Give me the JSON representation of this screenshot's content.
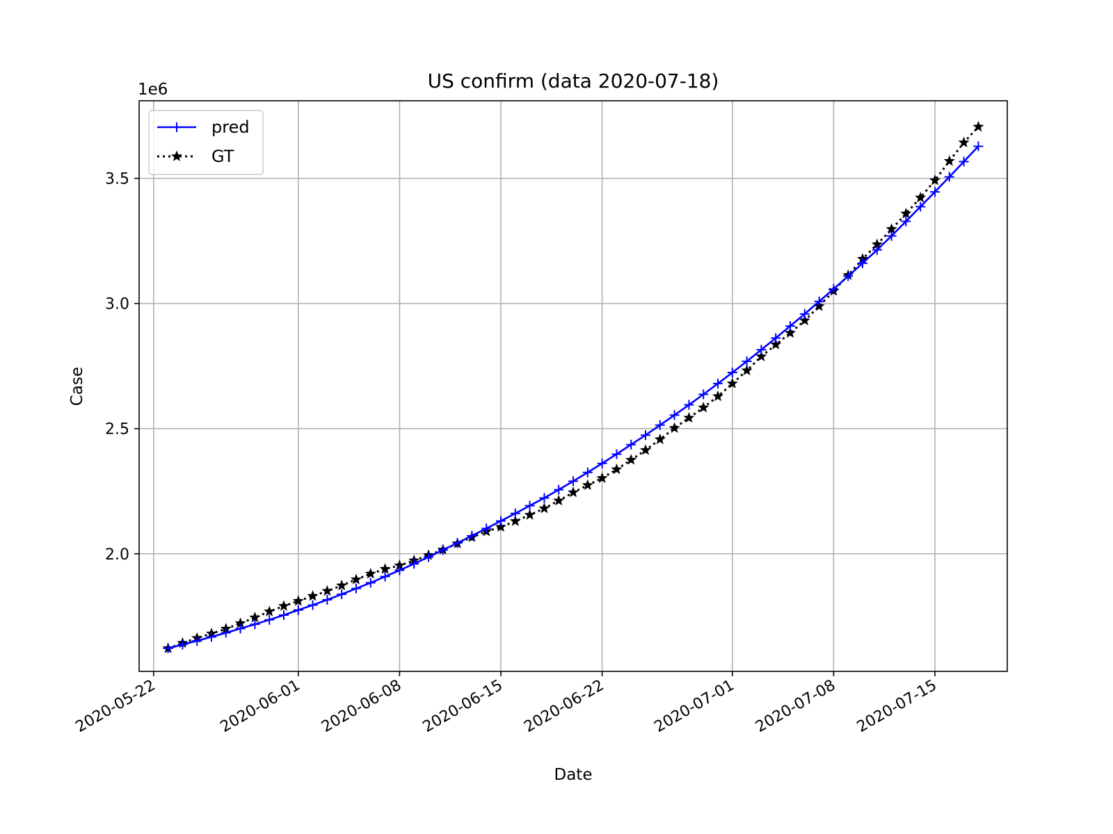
{
  "chart_data": {
    "type": "line",
    "title": "US confirm (data 2020-07-18)",
    "xlabel": "Date",
    "ylabel": "Case",
    "y_offset_label": "1e6",
    "y_scale_factor": 1000000,
    "grid": true,
    "legend_position": "upper-left",
    "xlim": [
      "2020-05-21",
      "2020-07-20"
    ],
    "ylim": [
      1530000,
      3810000
    ],
    "x_ticks": [
      "2020-05-22",
      "2020-06-01",
      "2020-06-08",
      "2020-06-15",
      "2020-06-22",
      "2020-07-01",
      "2020-07-08",
      "2020-07-15"
    ],
    "y_ticks": [
      2.0,
      2.5,
      3.0,
      3.5
    ],
    "dates": [
      "2020-05-23",
      "2020-05-24",
      "2020-05-25",
      "2020-05-26",
      "2020-05-27",
      "2020-05-28",
      "2020-05-29",
      "2020-05-30",
      "2020-05-31",
      "2020-06-01",
      "2020-06-02",
      "2020-06-03",
      "2020-06-04",
      "2020-06-05",
      "2020-06-06",
      "2020-06-07",
      "2020-06-08",
      "2020-06-09",
      "2020-06-10",
      "2020-06-11",
      "2020-06-12",
      "2020-06-13",
      "2020-06-14",
      "2020-06-15",
      "2020-06-16",
      "2020-06-17",
      "2020-06-18",
      "2020-06-19",
      "2020-06-20",
      "2020-06-21",
      "2020-06-22",
      "2020-06-23",
      "2020-06-24",
      "2020-06-25",
      "2020-06-26",
      "2020-06-27",
      "2020-06-28",
      "2020-06-29",
      "2020-06-30",
      "2020-07-01",
      "2020-07-02",
      "2020-07-03",
      "2020-07-04",
      "2020-07-05",
      "2020-07-06",
      "2020-07-07",
      "2020-07-08",
      "2020-07-09",
      "2020-07-10",
      "2020-07-11",
      "2020-07-12",
      "2020-07-13",
      "2020-07-14",
      "2020-07-15",
      "2020-07-16",
      "2020-07-17",
      "2020-07-18"
    ],
    "series": [
      {
        "name": "pred",
        "color": "#0000ff",
        "line_style": "solid",
        "marker": "plus",
        "values": [
          1622000,
          1637000,
          1652000,
          1668000,
          1684000,
          1701000,
          1718000,
          1736000,
          1755000,
          1775000,
          1795000,
          1816000,
          1838000,
          1861000,
          1884000,
          1909000,
          1934000,
          1960000,
          1987000,
          2015000,
          2043000,
          2072000,
          2101000,
          2131000,
          2161000,
          2192000,
          2223000,
          2256000,
          2290000,
          2325000,
          2361000,
          2398000,
          2436000,
          2474000,
          2514000,
          2554000,
          2595000,
          2637000,
          2680000,
          2724000,
          2769000,
          2815000,
          2862000,
          2910000,
          2958000,
          3008000,
          3058000,
          3109000,
          3161000,
          3214000,
          3270000,
          3328000,
          3387000,
          3446000,
          3506000,
          3567000,
          3628000
        ]
      },
      {
        "name": "GT",
        "color": "#000000",
        "line_style": "dotted",
        "marker": "star",
        "values": [
          1622000,
          1643000,
          1663000,
          1681000,
          1700000,
          1722000,
          1745000,
          1769000,
          1791000,
          1811000,
          1831000,
          1851000,
          1873000,
          1897000,
          1920000,
          1939000,
          1953000,
          1973000,
          1994000,
          2016000,
          2041000,
          2066000,
          2089000,
          2107000,
          2130000,
          2155000,
          2181000,
          2212000,
          2245000,
          2274000,
          2302000,
          2337000,
          2375000,
          2414000,
          2457000,
          2502000,
          2543000,
          2584000,
          2629000,
          2680000,
          2732000,
          2788000,
          2836000,
          2882000,
          2932000,
          2989000,
          3050000,
          3113000,
          3178000,
          3236000,
          3297000,
          3359000,
          3423000,
          3492000,
          3569000,
          3643000,
          3706000
        ]
      }
    ]
  }
}
